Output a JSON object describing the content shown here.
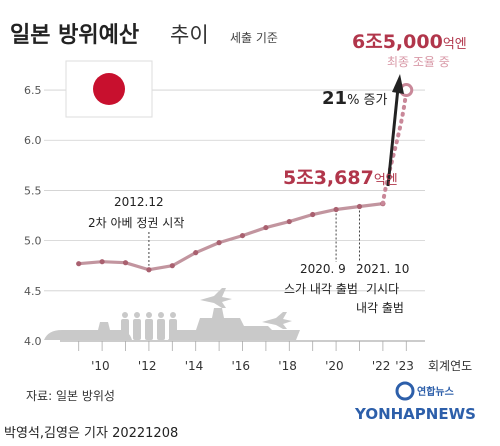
{
  "header": {
    "title_main": "일본 방위예산",
    "title_sub": "추이",
    "unit_note": "세출 기준"
  },
  "flag": {
    "name": "japan-flag",
    "field_color": "#ffffff",
    "disc_color": "#c8102e"
  },
  "labels": {
    "final_value_number": "6조5,000",
    "final_value_unit": "억엔",
    "final_value_note": "최종 조율 중",
    "increase_pct": "21",
    "increase_unit": "% 증가",
    "value_2022_number": "5조3,687",
    "value_2022_unit": "억엔"
  },
  "annotations": [
    {
      "year": 2012,
      "lines": [
        "2012.12",
        "2차 아베 정권 시작"
      ]
    },
    {
      "year": 2020,
      "lines": [
        "2020. 9",
        "스가 내각 출범"
      ]
    },
    {
      "year": 2021,
      "lines": [
        "2021. 10",
        "기시다",
        "내각 출범"
      ]
    }
  ],
  "footer": {
    "source": "자료: 일본 방위성",
    "credit": "박영석,김영은 기자  20221208",
    "brand": "YONHAPNEWS",
    "brand_ko": "연합뉴스"
  },
  "colors": {
    "line": "#c2959f",
    "line_dark": "#a9606f",
    "projection": "#c98899",
    "accent": "#b1364b",
    "grid": "#cfcfcf",
    "silhouette": "#c9c9c9"
  },
  "chart_data": {
    "type": "line",
    "title": "일본 방위예산 추이",
    "unit": "세출 기준",
    "x_label": "회계연도",
    "x_ticks": [
      "'10",
      "'12",
      "'14",
      "'16",
      "'18",
      "'20",
      "'22",
      "'23"
    ],
    "y_ticks": [
      "4.0",
      "4.5",
      "5.0",
      "5.5",
      "6.0",
      "6.5"
    ],
    "ylim": [
      4.0,
      6.6
    ],
    "xlim": [
      2008.2,
      2023.8
    ],
    "series": [
      {
        "x": [
          2009,
          2010,
          2011,
          2012,
          2013,
          2014,
          2015,
          2016,
          2017,
          2018,
          2019,
          2020,
          2021,
          2022
        ],
        "y": [
          4.77,
          4.79,
          4.78,
          4.71,
          4.75,
          4.88,
          4.98,
          5.05,
          5.13,
          5.19,
          5.26,
          5.31,
          5.34,
          5.3687
        ],
        "style": "solid"
      },
      {
        "x": [
          2022,
          2023
        ],
        "y": [
          5.3687,
          6.5
        ],
        "style": "dotted",
        "note": "최종 조율 중"
      }
    ],
    "grid": true
  }
}
